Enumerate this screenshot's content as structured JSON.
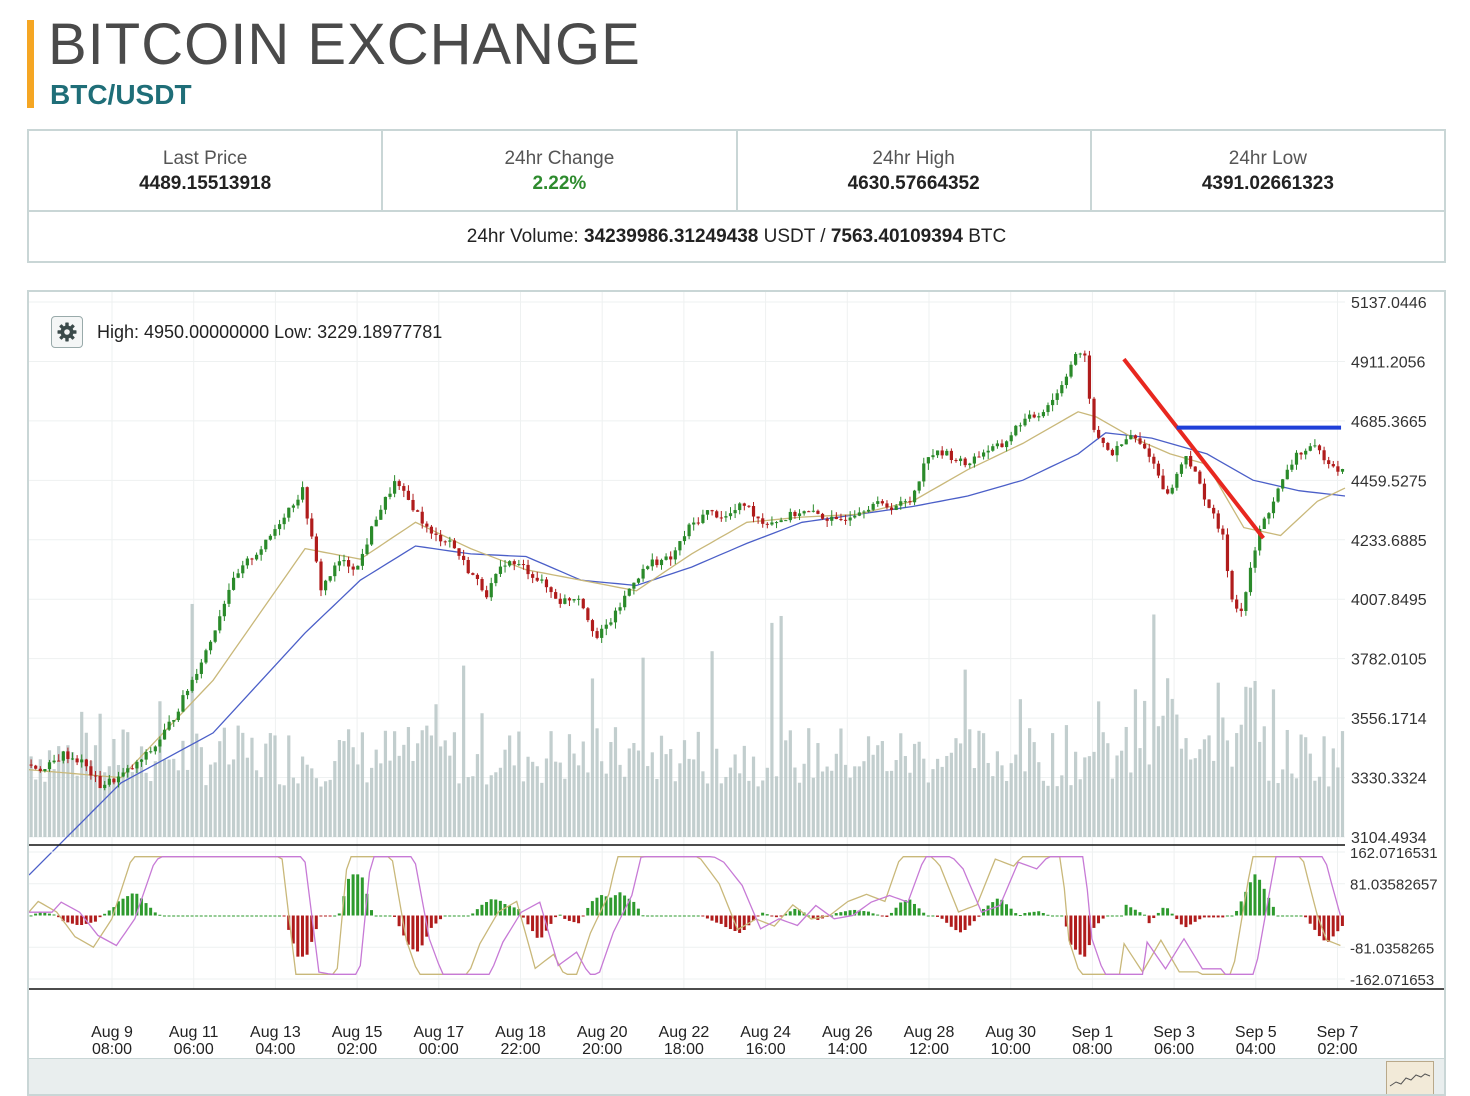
{
  "header": {
    "title": "BITCOIN EXCHANGE",
    "pair": "BTC/USDT",
    "accent_color": "#f5a623"
  },
  "stats": {
    "last_price": {
      "label": "Last Price",
      "value": "4489.15513918"
    },
    "change_24h": {
      "label": "24hr Change",
      "value": "2.22%"
    },
    "high_24h": {
      "label": "24hr High",
      "value": "4630.57664352"
    },
    "low_24h": {
      "label": "24hr Low",
      "value": "4391.02661323"
    },
    "volume": {
      "label": "24hr Volume:",
      "usdt_value": "34239986.31249438",
      "usdt_unit": "USDT /",
      "btc_value": "7563.40109394",
      "btc_unit": "BTC"
    }
  },
  "chart": {
    "settings_icon": "gear-icon",
    "high_low_label": "High: 4950.00000000  Low: 3229.18977781"
  },
  "chart_data": {
    "type": "candlestick",
    "price_axis_ticks": [
      "5137.0446",
      "4911.2056",
      "4685.3665",
      "4459.5275",
      "4233.6885",
      "4007.8495",
      "3782.0105",
      "3556.1714",
      "3330.3324",
      "3104.4934"
    ],
    "price_axis_values": [
      5137.0446,
      4911.2056,
      4685.3665,
      4459.5275,
      4233.6885,
      4007.8495,
      3782.0105,
      3556.1714,
      3330.3324,
      3104.4934
    ],
    "macd_axis_ticks": [
      "162.0716531",
      "81.03582657",
      "-81.0358265",
      "-162.071653"
    ],
    "macd_axis_values": [
      162.0716531,
      81.03582657,
      -81.0358265,
      -162.071653
    ],
    "x_ticks": [
      {
        "date": "Aug 9",
        "time": "08:00"
      },
      {
        "date": "Aug 11",
        "time": "06:00"
      },
      {
        "date": "Aug 13",
        "time": "04:00"
      },
      {
        "date": "Aug 15",
        "time": "02:00"
      },
      {
        "date": "Aug 17",
        "time": "00:00"
      },
      {
        "date": "Aug 18",
        "time": "22:00"
      },
      {
        "date": "Aug 20",
        "time": "20:00"
      },
      {
        "date": "Aug 22",
        "time": "18:00"
      },
      {
        "date": "Aug 24",
        "time": "16:00"
      },
      {
        "date": "Aug 26",
        "time": "14:00"
      },
      {
        "date": "Aug 28",
        "time": "12:00"
      },
      {
        "date": "Aug 30",
        "time": "10:00"
      },
      {
        "date": "Sep 1",
        "time": "08:00"
      },
      {
        "date": "Sep 3",
        "time": "06:00"
      },
      {
        "date": "Sep 5",
        "time": "04:00"
      },
      {
        "date": "Sep 7",
        "time": "02:00"
      }
    ],
    "price_path": [
      [
        0,
        3380
      ],
      [
        4,
        3360
      ],
      [
        8,
        3420
      ],
      [
        12,
        3390
      ],
      [
        16,
        3300
      ],
      [
        20,
        3330
      ],
      [
        24,
        3380
      ],
      [
        28,
        3450
      ],
      [
        32,
        3560
      ],
      [
        36,
        3700
      ],
      [
        40,
        3850
      ],
      [
        44,
        4050
      ],
      [
        48,
        4150
      ],
      [
        52,
        4220
      ],
      [
        56,
        4330
      ],
      [
        60,
        4420
      ],
      [
        64,
        4050
      ],
      [
        68,
        4150
      ],
      [
        72,
        4130
      ],
      [
        76,
        4320
      ],
      [
        80,
        4450
      ],
      [
        84,
        4360
      ],
      [
        88,
        4250
      ],
      [
        92,
        4230
      ],
      [
        96,
        4120
      ],
      [
        100,
        4030
      ],
      [
        104,
        4150
      ],
      [
        108,
        4130
      ],
      [
        112,
        4070
      ],
      [
        116,
        4000
      ],
      [
        120,
        4020
      ],
      [
        124,
        3860
      ],
      [
        128,
        3950
      ],
      [
        132,
        4080
      ],
      [
        136,
        4150
      ],
      [
        140,
        4160
      ],
      [
        144,
        4280
      ],
      [
        148,
        4340
      ],
      [
        152,
        4320
      ],
      [
        156,
        4370
      ],
      [
        160,
        4300
      ],
      [
        164,
        4310
      ],
      [
        168,
        4340
      ],
      [
        172,
        4330
      ],
      [
        176,
        4300
      ],
      [
        180,
        4340
      ],
      [
        184,
        4370
      ],
      [
        188,
        4360
      ],
      [
        192,
        4380
      ],
      [
        196,
        4560
      ],
      [
        200,
        4560
      ],
      [
        204,
        4520
      ],
      [
        208,
        4570
      ],
      [
        212,
        4590
      ],
      [
        216,
        4680
      ],
      [
        220,
        4710
      ],
      [
        224,
        4790
      ],
      [
        228,
        4940
      ],
      [
        230,
        4920
      ],
      [
        232,
        4640
      ],
      [
        236,
        4560
      ],
      [
        240,
        4630
      ],
      [
        244,
        4560
      ],
      [
        248,
        4400
      ],
      [
        252,
        4560
      ],
      [
        256,
        4400
      ],
      [
        260,
        4240
      ],
      [
        262,
        4010
      ],
      [
        264,
        3960
      ],
      [
        268,
        4270
      ],
      [
        272,
        4420
      ],
      [
        276,
        4560
      ],
      [
        280,
        4580
      ],
      [
        284,
        4520
      ],
      [
        286,
        4490
      ]
    ],
    "sma_fast": [
      [
        0,
        3360
      ],
      [
        20,
        3330
      ],
      [
        40,
        3700
      ],
      [
        60,
        4200
      ],
      [
        72,
        4160
      ],
      [
        84,
        4300
      ],
      [
        96,
        4200
      ],
      [
        108,
        4120
      ],
      [
        120,
        4080
      ],
      [
        132,
        4040
      ],
      [
        144,
        4180
      ],
      [
        156,
        4300
      ],
      [
        168,
        4320
      ],
      [
        180,
        4330
      ],
      [
        192,
        4380
      ],
      [
        204,
        4500
      ],
      [
        216,
        4600
      ],
      [
        228,
        4720
      ],
      [
        232,
        4700
      ],
      [
        240,
        4620
      ],
      [
        248,
        4560
      ],
      [
        256,
        4520
      ],
      [
        264,
        4280
      ],
      [
        272,
        4250
      ],
      [
        280,
        4380
      ],
      [
        286,
        4430
      ]
    ],
    "sma_slow": [
      [
        0,
        2960
      ],
      [
        20,
        3310
      ],
      [
        40,
        3500
      ],
      [
        60,
        3880
      ],
      [
        72,
        4080
      ],
      [
        84,
        4210
      ],
      [
        96,
        4180
      ],
      [
        108,
        4170
      ],
      [
        120,
        4080
      ],
      [
        132,
        4060
      ],
      [
        144,
        4130
      ],
      [
        156,
        4220
      ],
      [
        168,
        4300
      ],
      [
        180,
        4330
      ],
      [
        192,
        4360
      ],
      [
        204,
        4400
      ],
      [
        216,
        4460
      ],
      [
        228,
        4560
      ],
      [
        234,
        4640
      ],
      [
        244,
        4620
      ],
      [
        256,
        4560
      ],
      [
        266,
        4460
      ],
      [
        276,
        4420
      ],
      [
        286,
        4400
      ]
    ],
    "trendline_red": {
      "start": [
        4920,
        0.832
      ],
      "end": [
        4240,
        0.938
      ]
    },
    "trendline_blue": {
      "start": [
        4660,
        0.872
      ],
      "end": [
        4660,
        0.997
      ]
    }
  }
}
